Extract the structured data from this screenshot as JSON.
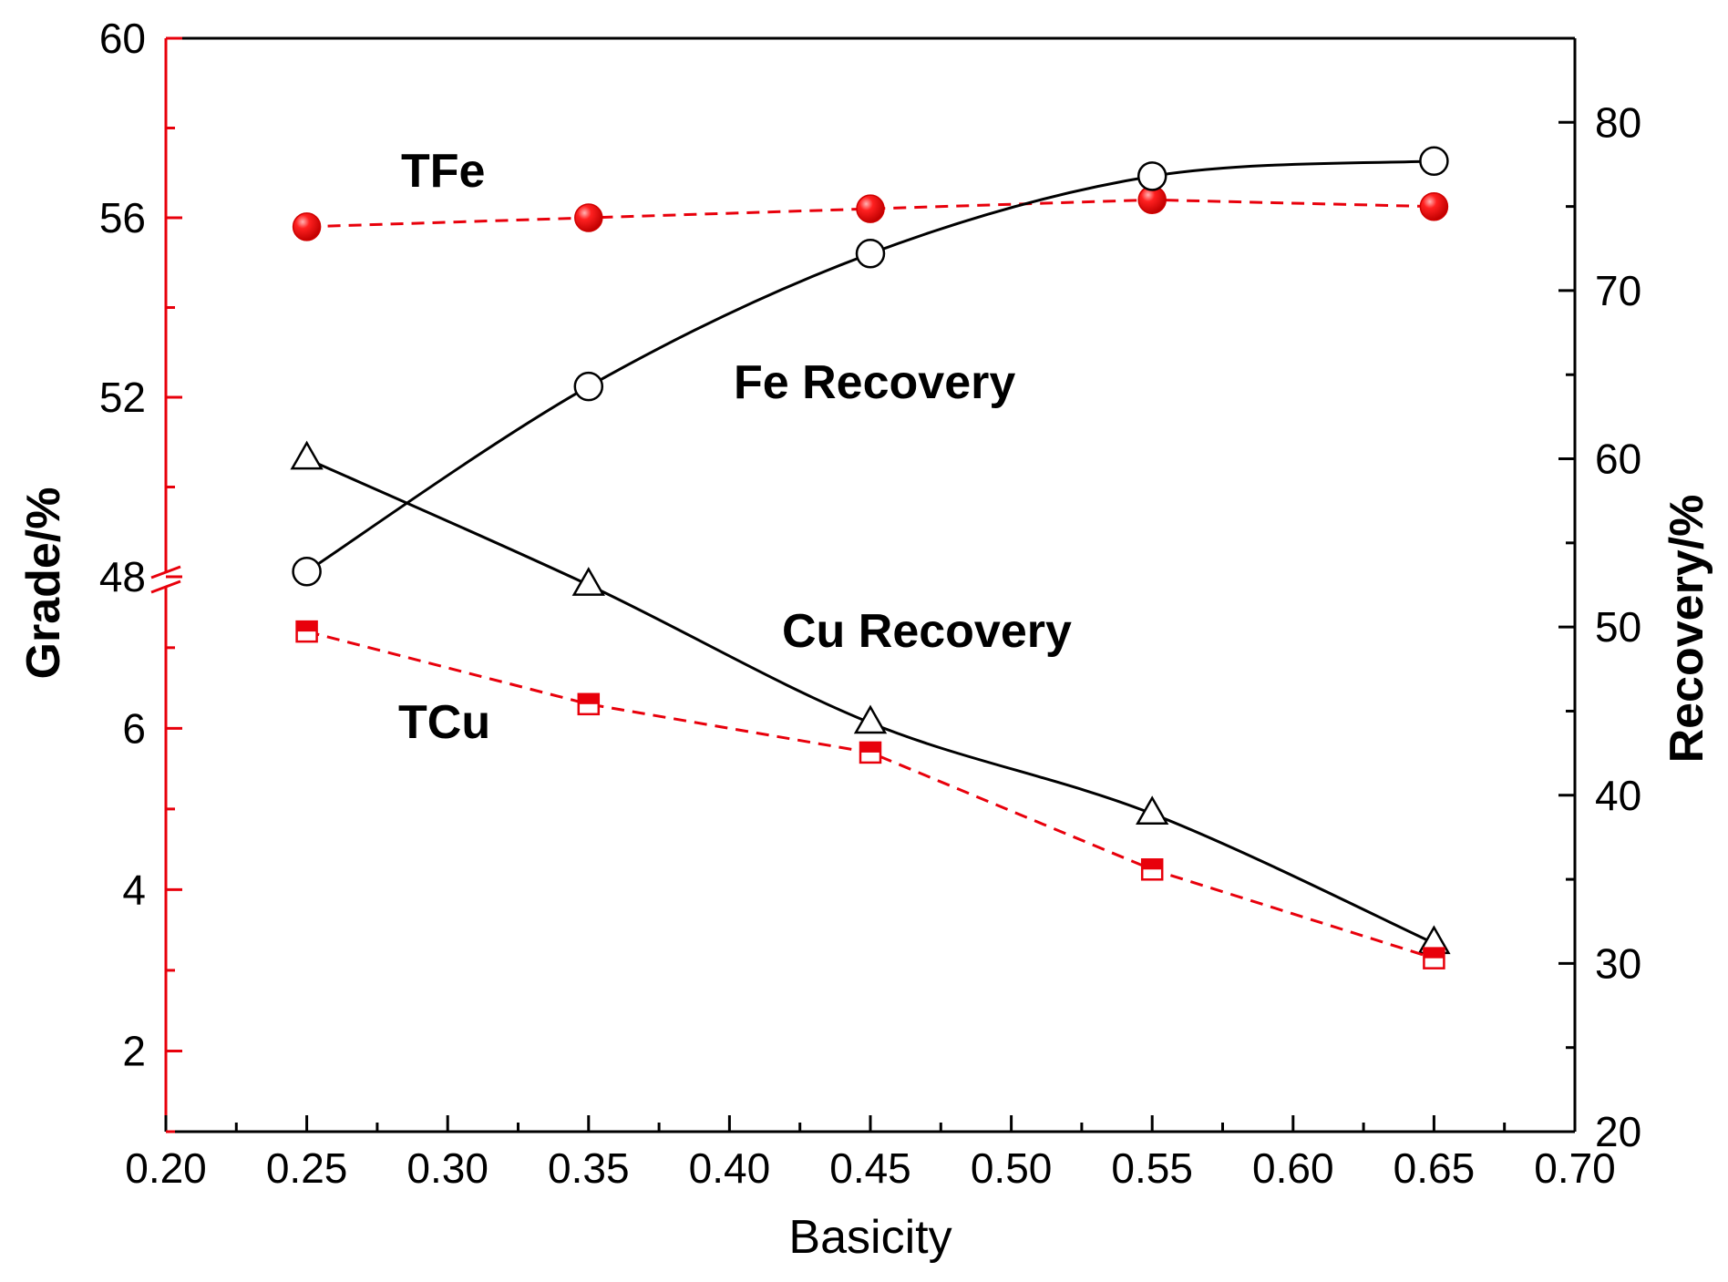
{
  "chart_data": {
    "type": "line",
    "xlabel": "Basicity",
    "ylabel_left": "Grade/%",
    "ylabel_right": "Recovery/%",
    "x_ticks": [
      "0.20",
      "0.25",
      "0.30",
      "0.35",
      "0.40",
      "0.45",
      "0.50",
      "0.55",
      "0.60",
      "0.65",
      "0.70"
    ],
    "xlim": [
      0.2,
      0.7
    ],
    "left_axis": {
      "color": "#e8000b",
      "broken": true,
      "upper_range": [
        48,
        60
      ],
      "upper_ticks": [
        "48",
        "52",
        "56",
        "60"
      ],
      "lower_range": [
        1,
        7.8
      ],
      "lower_ticks": [
        "2",
        "4",
        "6"
      ]
    },
    "right_axis": {
      "range": [
        20,
        85
      ],
      "ticks": [
        "20",
        "30",
        "40",
        "50",
        "60",
        "70",
        "80"
      ]
    },
    "series": [
      {
        "label": "TFe",
        "axis": "left",
        "color": "#e8000b",
        "marker": "filled-circle",
        "line": "dashed",
        "x": [
          0.25,
          0.35,
          0.45,
          0.55,
          0.65
        ],
        "y": [
          55.8,
          56.0,
          56.2,
          56.4,
          56.25
        ]
      },
      {
        "label": "Fe Recovery",
        "axis": "right",
        "color": "#000000",
        "marker": "open-circle",
        "line": "smooth-solid",
        "x": [
          0.25,
          0.35,
          0.45,
          0.55,
          0.65
        ],
        "y": [
          53.3,
          64.3,
          72.2,
          76.8,
          77.7
        ]
      },
      {
        "label": "Cu Recovery",
        "axis": "right",
        "color": "#000000",
        "marker": "open-triangle",
        "line": "smooth-solid",
        "x": [
          0.25,
          0.35,
          0.45,
          0.55,
          0.65
        ],
        "y": [
          60.0,
          52.5,
          44.3,
          38.9,
          31.2
        ]
      },
      {
        "label": "TCu",
        "axis": "left",
        "color": "#e8000b",
        "marker": "half-filled-square",
        "line": "dashed",
        "x": [
          0.25,
          0.35,
          0.45,
          0.55,
          0.65
        ],
        "y": [
          7.2,
          6.3,
          5.7,
          4.25,
          3.15
        ]
      }
    ],
    "annotations": [
      "TFe",
      "Fe Recovery",
      "Cu Recovery",
      "TCu"
    ],
    "grid": false,
    "legend": "none"
  }
}
